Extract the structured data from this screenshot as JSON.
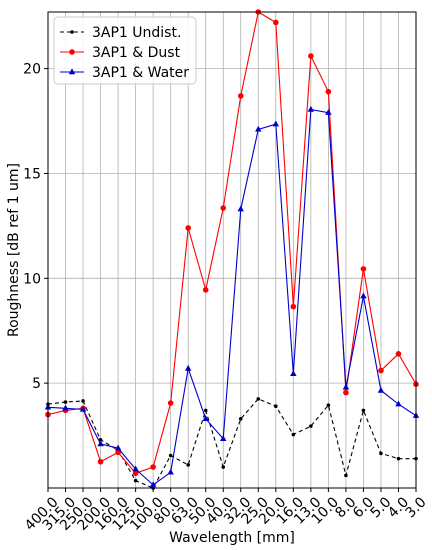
{
  "chart_data": {
    "type": "line",
    "xlabel": "Wavelength [mm]",
    "ylabel": "Roughness [dB ref 1 um]",
    "categories": [
      "400.0",
      "315.0",
      "250.0",
      "200.0",
      "160.0",
      "125.0",
      "100.0",
      "80.0",
      "63.0",
      "50.0",
      "40.0",
      "32.0",
      "25.0",
      "20.0",
      "16.0",
      "13.0",
      "10.0",
      "8.0",
      "6.0",
      "5.0",
      "4.0",
      "3.0"
    ],
    "ylim": [
      0,
      22.7
    ],
    "yticks": [
      5,
      10,
      15,
      20
    ],
    "grid": true,
    "legend_position": "top-left",
    "series": [
      {
        "name": "3AP1 Undist.",
        "color": "#000000",
        "linestyle": "dashed",
        "marker": "dot",
        "values": [
          4.0,
          4.1,
          4.15,
          2.3,
          1.8,
          0.35,
          0.0,
          1.55,
          1.1,
          3.7,
          1.0,
          3.3,
          4.25,
          3.9,
          2.55,
          2.95,
          3.95,
          0.6,
          3.7,
          1.65,
          1.4,
          1.4
        ]
      },
      {
        "name": "3AP1 & Dust",
        "color": "#ff0000",
        "linestyle": "solid",
        "marker": "circle",
        "values": [
          3.5,
          3.7,
          3.8,
          1.25,
          1.7,
          0.7,
          1.0,
          4.05,
          12.4,
          9.45,
          13.35,
          18.7,
          22.7,
          22.2,
          8.65,
          20.6,
          18.9,
          4.55,
          10.45,
          5.6,
          6.4,
          4.95
        ]
      },
      {
        "name": "3AP1 & Water",
        "color": "#0000cc",
        "linestyle": "solid",
        "marker": "triangle",
        "values": [
          3.85,
          3.8,
          3.75,
          2.1,
          1.9,
          0.9,
          0.15,
          0.75,
          5.7,
          3.3,
          2.35,
          13.3,
          17.1,
          17.35,
          5.45,
          18.05,
          17.9,
          4.8,
          9.15,
          4.65,
          4.0,
          3.45
        ]
      }
    ]
  }
}
